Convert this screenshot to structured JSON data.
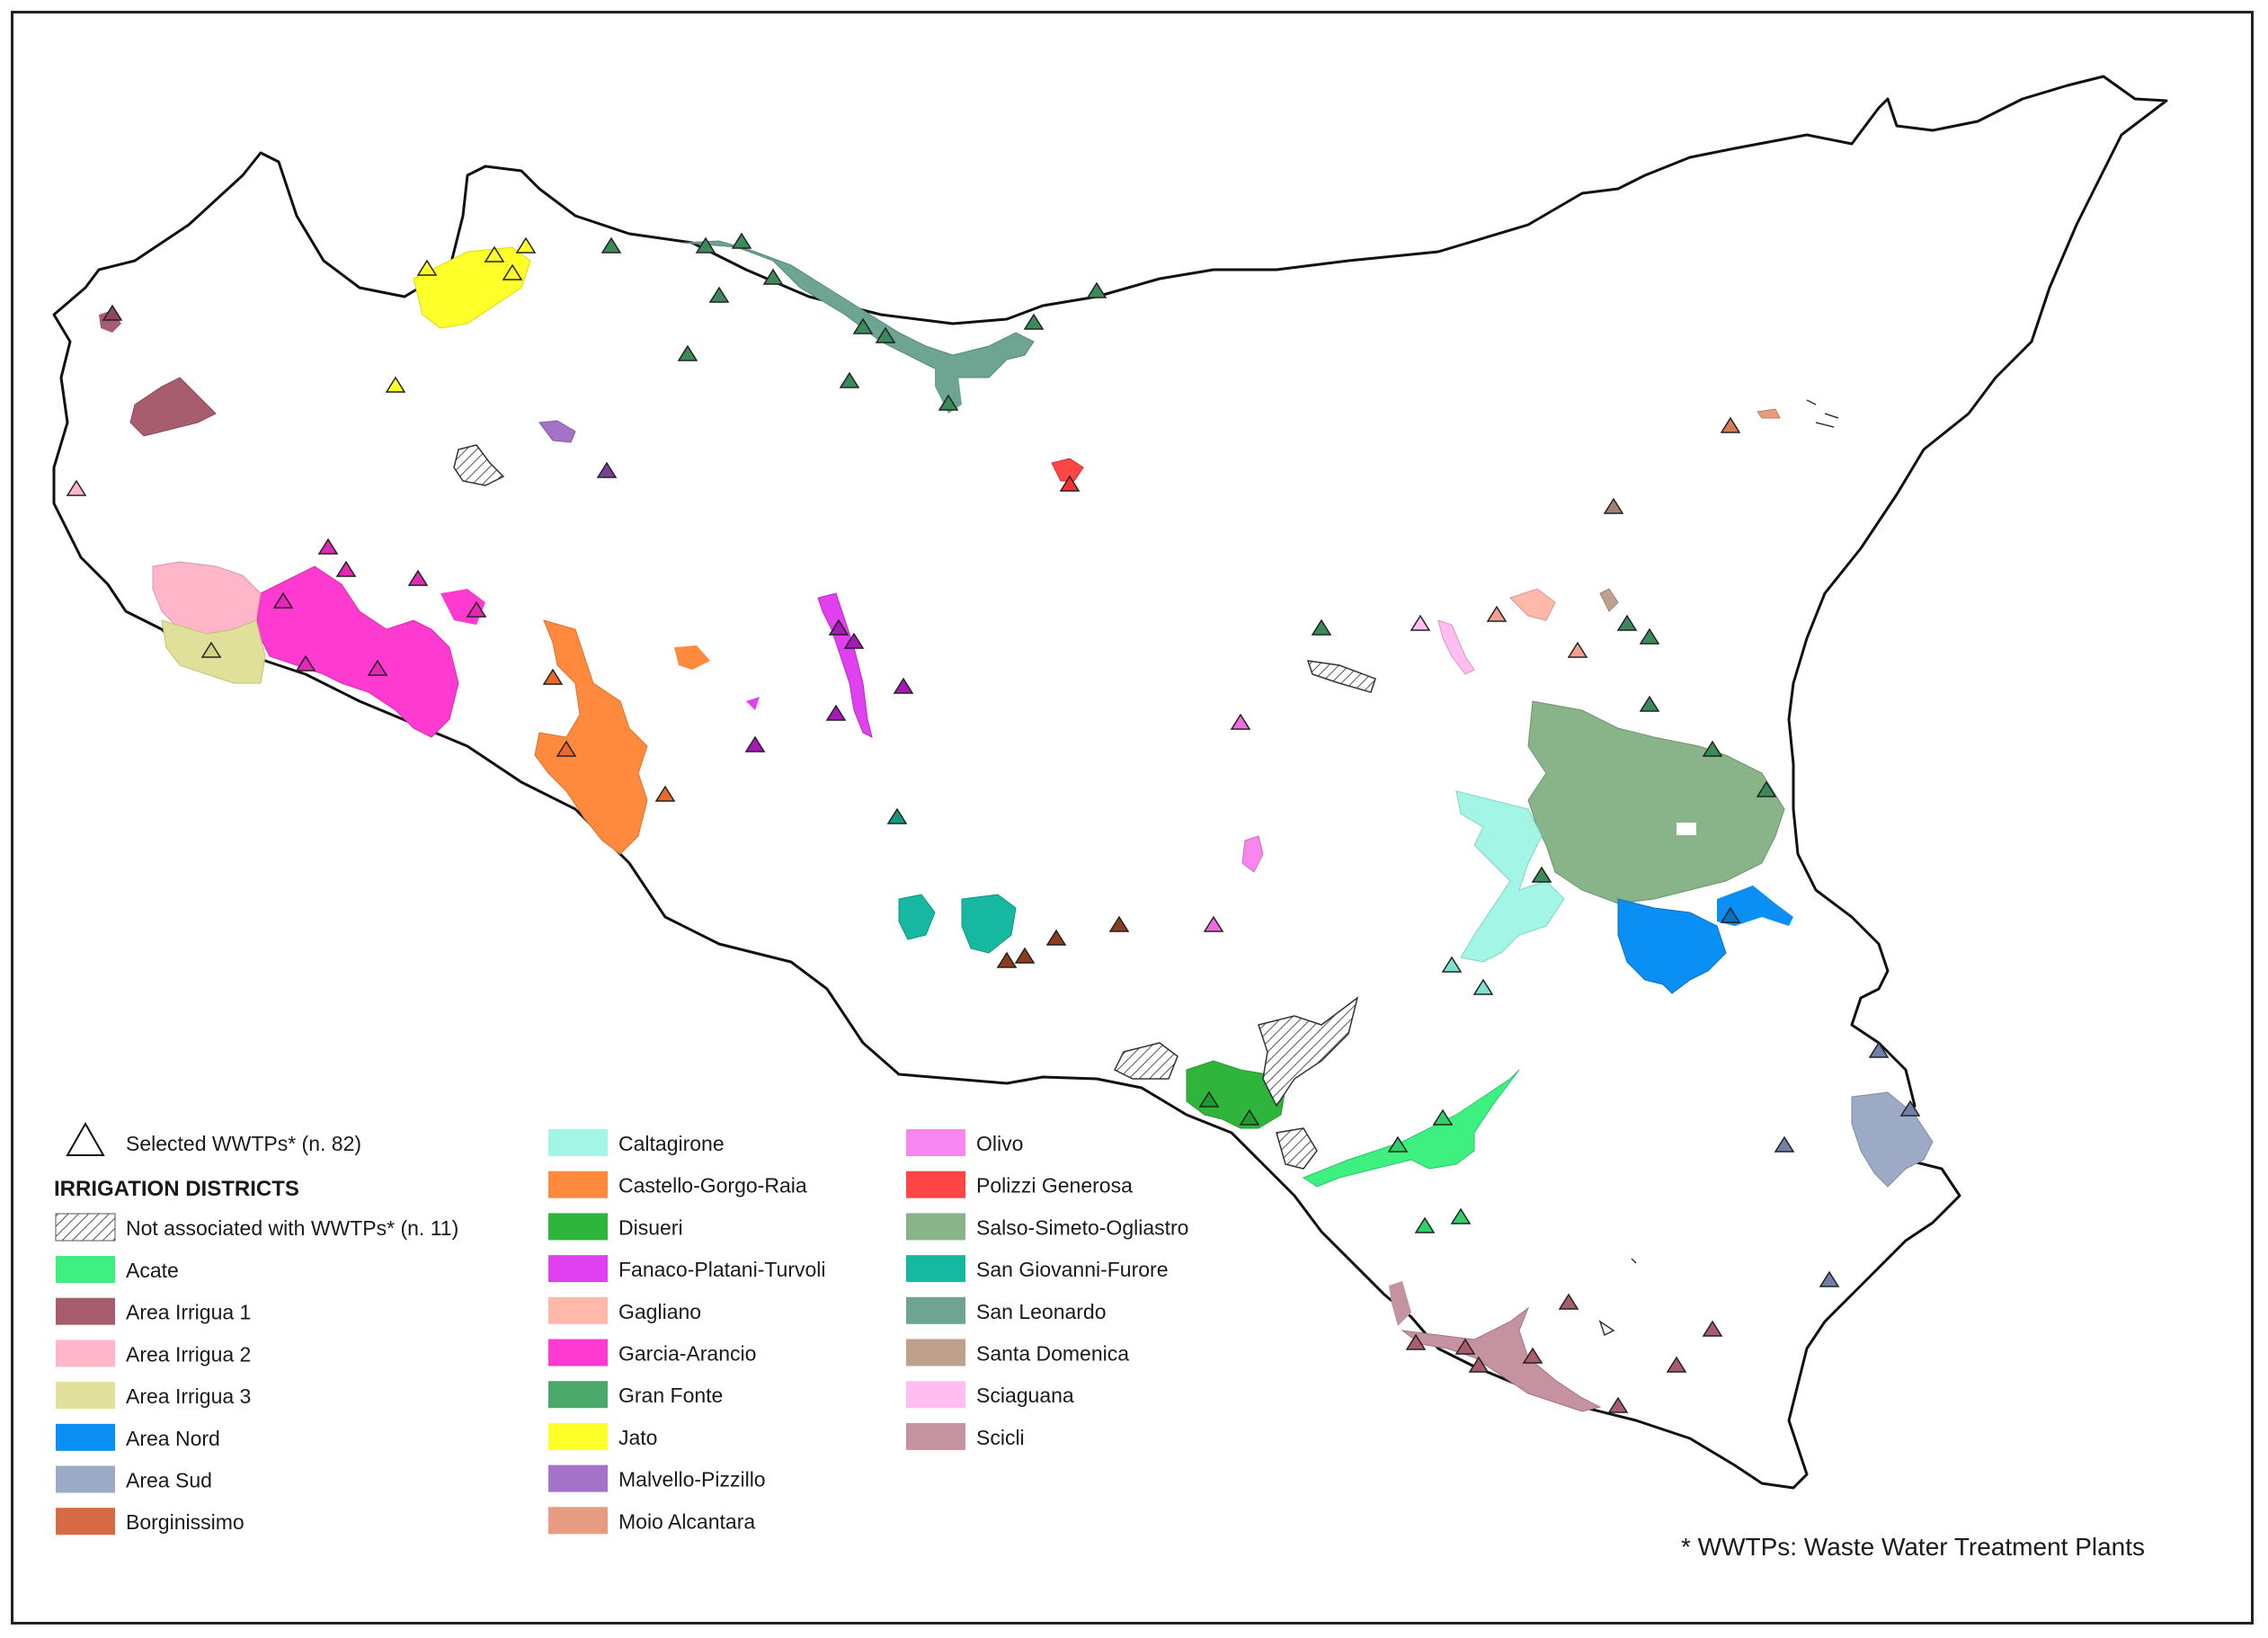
{
  "legend": {
    "wwtp_label": "Selected WWTPs* (n. 82)",
    "title": "IRRIGATION DISTRICTS",
    "unassociated_label": "Not associated with WWTPs* (n. 11)",
    "districts": [
      {
        "name": "Acate",
        "color": "#3ef07f"
      },
      {
        "name": "Area Irrigua 1",
        "color": "#a85d6e"
      },
      {
        "name": "Area Irrigua 2",
        "color": "#ffb6c8"
      },
      {
        "name": "Area Irrigua 3",
        "color": "#e0e09a"
      },
      {
        "name": "Area Nord",
        "color": "#0a90f5"
      },
      {
        "name": "Area Sud",
        "color": "#9daac6"
      },
      {
        "name": "Borginissimo",
        "color": "#d66a44"
      },
      {
        "name": "Caltagirone",
        "color": "#a3f5e6"
      },
      {
        "name": "Castello-Gorgo-Raia",
        "color": "#ff8a3d"
      },
      {
        "name": "Disueri",
        "color": "#2fb53c"
      },
      {
        "name": "Fanaco-Platani-Turvoli",
        "color": "#e040f0"
      },
      {
        "name": "Gagliano",
        "color": "#ffb8aa"
      },
      {
        "name": "Garcia-Arancio",
        "color": "#ff3ad0"
      },
      {
        "name": "Gran Fonte",
        "color": "#4aa86a"
      },
      {
        "name": "Jato",
        "color": "#ffff2a"
      },
      {
        "name": "Malvello-Pizzillo",
        "color": "#a473c8"
      },
      {
        "name": "Moio Alcantara",
        "color": "#e79b80"
      },
      {
        "name": "Olivo",
        "color": "#f985ee"
      },
      {
        "name": "Polizzi Generosa",
        "color": "#ff4545"
      },
      {
        "name": "Salso-Simeto-Ogliastro",
        "color": "#89b48a"
      },
      {
        "name": "San Giovanni-Furore",
        "color": "#17b8a2"
      },
      {
        "name": "San Leonardo",
        "color": "#6da592"
      },
      {
        "name": "Santa Domenica",
        "color": "#bfa08d"
      },
      {
        "name": "Sciaguana",
        "color": "#ffbdf0"
      },
      {
        "name": "Scicli",
        "color": "#c5929f"
      }
    ]
  },
  "footnote": "* WWTPs: Waste Water Treatment Plants"
}
